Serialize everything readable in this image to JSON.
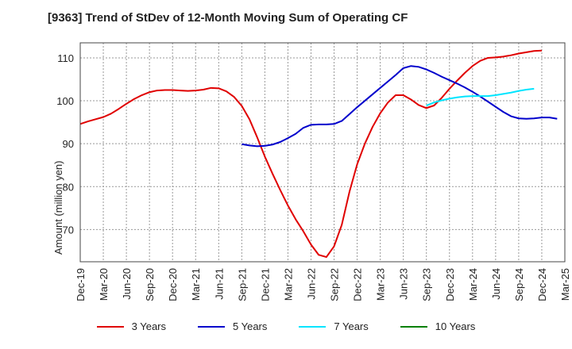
{
  "title": "[9363]  Trend of StDev of 12-Month Moving Sum of Operating CF",
  "chart_data": {
    "type": "line",
    "title": "[9363]  Trend of StDev of 12-Month Moving Sum of Operating CF",
    "xlabel": "",
    "ylabel": "Amount (million yen)",
    "ylim": [
      62.5,
      113.5
    ],
    "yticks": [
      70,
      80,
      90,
      100,
      110
    ],
    "x_tick_labels": [
      "Dec-19",
      "Mar-20",
      "Jun-20",
      "Sep-20",
      "Dec-20",
      "Mar-21",
      "Jun-21",
      "Sep-21",
      "Dec-21",
      "Mar-22",
      "Jun-22",
      "Sep-22",
      "Dec-22",
      "Mar-23",
      "Jun-23",
      "Sep-23",
      "Dec-23",
      "Mar-24",
      "Jun-24",
      "Sep-24",
      "Dec-24",
      "Mar-25"
    ],
    "x_start": "Dec-19",
    "x_months_step": 1,
    "grid": true,
    "legend_position": "bottom",
    "series": [
      {
        "name": "3 Years",
        "color": "#e00000",
        "start": "Dec-19",
        "values": [
          94.6,
          95.2,
          95.7,
          96.2,
          97.0,
          98.1,
          99.3,
          100.4,
          101.3,
          102.0,
          102.4,
          102.5,
          102.5,
          102.4,
          102.3,
          102.4,
          102.6,
          103.0,
          102.9,
          102.2,
          100.9,
          98.8,
          95.7,
          91.5,
          87.0,
          83.0,
          79.2,
          75.6,
          72.4,
          69.6,
          66.5,
          64.1,
          63.6,
          66.1,
          71.1,
          78.8,
          85.2,
          90.0,
          93.9,
          97.1,
          99.6,
          101.3,
          101.3,
          100.3,
          99.0,
          98.3,
          98.9,
          100.7,
          102.8,
          104.7,
          106.5,
          108.1,
          109.3,
          110.0,
          110.1,
          110.3,
          110.6,
          111.0,
          111.3,
          111.6,
          111.7
        ]
      },
      {
        "name": "5 Years",
        "color": "#0000cc",
        "start": "Sep-21",
        "values": [
          89.9,
          89.6,
          89.4,
          89.5,
          89.8,
          90.4,
          91.3,
          92.3,
          93.7,
          94.4,
          94.5,
          94.5,
          94.6,
          95.3,
          96.9,
          98.5,
          100.0,
          101.5,
          103.0,
          104.5,
          106.0,
          107.6,
          108.1,
          107.9,
          107.3,
          106.5,
          105.6,
          104.8,
          104.0,
          103.1,
          102.1,
          101.0,
          99.8,
          98.6,
          97.4,
          96.4,
          95.9,
          95.8,
          95.9,
          96.1,
          96.1,
          95.8
        ]
      },
      {
        "name": "7 Years",
        "color": "#00e5ff",
        "start": "Sep-23",
        "values": [
          98.9,
          99.6,
          100.1,
          100.5,
          100.8,
          101.0,
          101.1,
          101.1,
          101.1,
          101.3,
          101.6,
          101.9,
          102.3,
          102.6,
          102.8
        ]
      },
      {
        "name": "10 Years",
        "color": "#008000",
        "start": "Sep-24",
        "values": []
      }
    ]
  }
}
